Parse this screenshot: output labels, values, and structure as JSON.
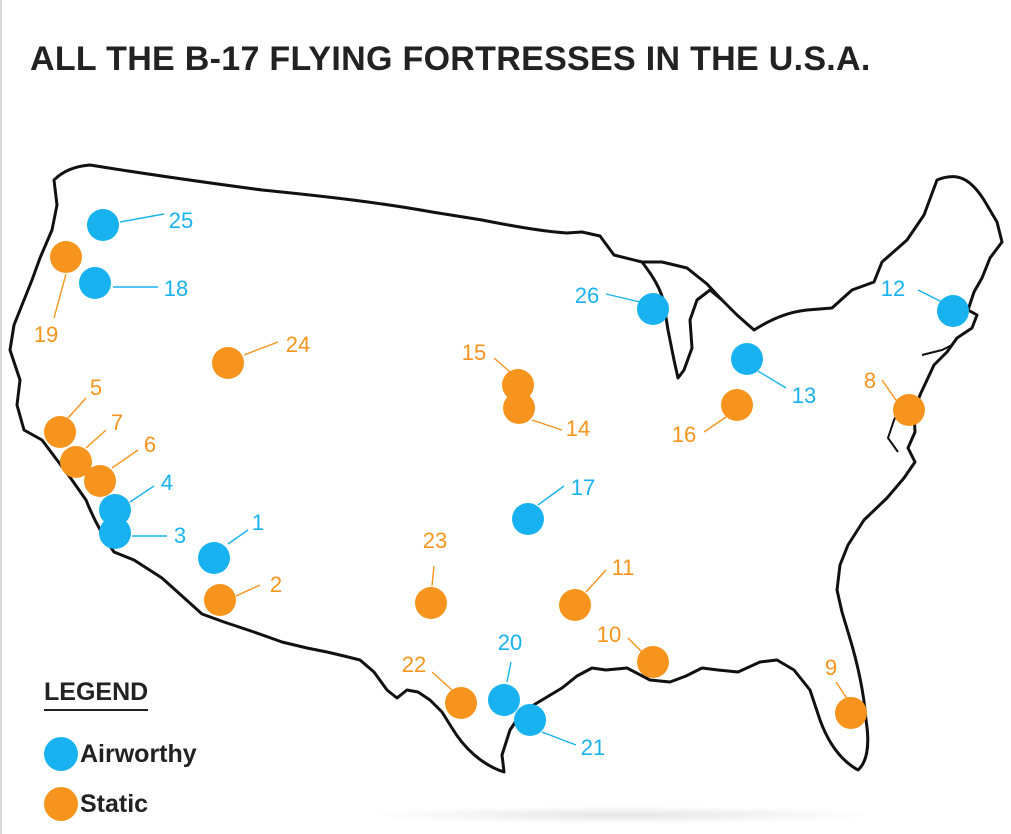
{
  "title": "ALL THE B-17 FLYING FORTRESSES IN THE U.S.A.",
  "colors": {
    "airworthy": "#18b2f0",
    "static": "#f7941d",
    "outline": "#111111"
  },
  "legend": {
    "title": "LEGEND",
    "items": [
      {
        "key": "airworthy",
        "label": "Airworthy"
      },
      {
        "key": "static",
        "label": "Static"
      }
    ]
  },
  "markers": [
    {
      "id": "1",
      "status": "airworthy"
    },
    {
      "id": "2",
      "status": "static"
    },
    {
      "id": "3",
      "status": "airworthy"
    },
    {
      "id": "4",
      "status": "airworthy"
    },
    {
      "id": "5",
      "status": "static"
    },
    {
      "id": "6",
      "status": "static"
    },
    {
      "id": "7",
      "status": "static"
    },
    {
      "id": "8",
      "status": "static"
    },
    {
      "id": "9",
      "status": "static"
    },
    {
      "id": "10",
      "status": "static"
    },
    {
      "id": "11",
      "status": "static"
    },
    {
      "id": "12",
      "status": "airworthy"
    },
    {
      "id": "13",
      "status": "airworthy"
    },
    {
      "id": "14",
      "status": "static"
    },
    {
      "id": "15",
      "status": "static"
    },
    {
      "id": "16",
      "status": "static"
    },
    {
      "id": "17",
      "status": "airworthy"
    },
    {
      "id": "18",
      "status": "airworthy"
    },
    {
      "id": "19",
      "status": "static"
    },
    {
      "id": "20",
      "status": "airworthy"
    },
    {
      "id": "21",
      "status": "airworthy"
    },
    {
      "id": "22",
      "status": "static"
    },
    {
      "id": "23",
      "status": "static"
    },
    {
      "id": "24",
      "status": "static"
    },
    {
      "id": "25",
      "status": "airworthy"
    },
    {
      "id": "26",
      "status": "airworthy"
    }
  ]
}
